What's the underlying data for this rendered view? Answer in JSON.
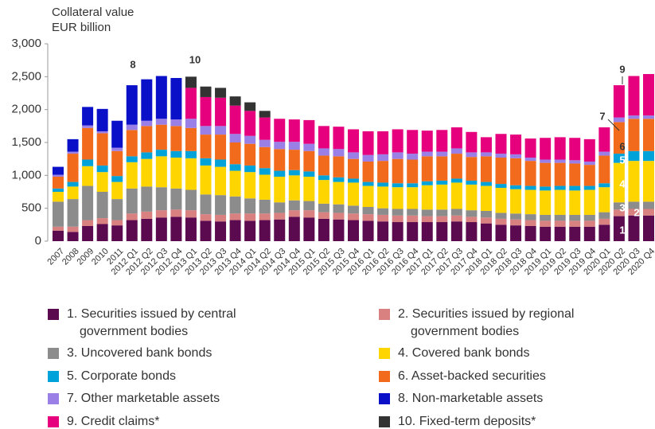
{
  "chart_data": {
    "type": "stacked_bar",
    "title": "Collateral value",
    "subtitle": "EUR billion",
    "categories": [
      "2007",
      "2008",
      "2009",
      "2010",
      "2011",
      "2012 Q1",
      "2012 Q2",
      "2012 Q3",
      "2012 Q4",
      "2013 Q1",
      "2013 Q2",
      "2013 Q3",
      "2013 Q4",
      "2014 Q1",
      "2014 Q2",
      "2014 Q3",
      "2014 Q4",
      "2015 Q1",
      "2015 Q2",
      "2015 Q3",
      "2015 Q4",
      "2016 Q1",
      "2016 Q2",
      "2016 Q3",
      "2016 Q4",
      "2017 Q1",
      "2017 Q2",
      "2017 Q3",
      "2017 Q4",
      "2018 Q1",
      "2018 Q2",
      "2018 Q3",
      "2018 Q4",
      "2019 Q1",
      "2019 Q2",
      "2019 Q3",
      "2019 Q4",
      "2020 Q1",
      "2020 Q2",
      "2020 Q3",
      "2020 Q4"
    ],
    "series": [
      {
        "name": "1. Securities issued by central government bodies",
        "color": "#5c0a4f",
        "values": [
          160,
          140,
          230,
          260,
          240,
          320,
          340,
          360,
          370,
          360,
          310,
          300,
          320,
          310,
          320,
          330,
          370,
          360,
          340,
          330,
          320,
          310,
          300,
          290,
          290,
          290,
          290,
          300,
          290,
          270,
          250,
          240,
          230,
          220,
          220,
          220,
          220,
          250,
          380,
          390,
          390
        ]
      },
      {
        "name": "2. Securities issued by regional government bodies",
        "color": "#d98080",
        "values": [
          60,
          80,
          90,
          90,
          80,
          100,
          110,
          110,
          110,
          110,
          100,
          100,
          100,
          110,
          100,
          100,
          100,
          110,
          100,
          100,
          100,
          100,
          100,
          100,
          100,
          90,
          90,
          90,
          80,
          90,
          90,
          90,
          90,
          90,
          90,
          90,
          90,
          90,
          100,
          100,
          100
        ]
      },
      {
        "name": "3. Uncovered bank bonds",
        "color": "#8c8c8c",
        "values": [
          380,
          420,
          520,
          400,
          320,
          380,
          380,
          350,
          320,
          310,
          300,
          300,
          260,
          230,
          210,
          160,
          150,
          140,
          130,
          130,
          120,
          110,
          100,
          100,
          100,
          100,
          100,
          100,
          100,
          100,
          90,
          90,
          90,
          90,
          90,
          90,
          90,
          100,
          110,
          110,
          110
        ]
      },
      {
        "name": "4. Covered bank bonds",
        "color": "#ffd500",
        "values": [
          150,
          190,
          300,
          300,
          260,
          400,
          420,
          470,
          470,
          480,
          440,
          430,
          390,
          400,
          380,
          390,
          380,
          370,
          360,
          340,
          350,
          320,
          330,
          330,
          330,
          370,
          380,
          400,
          390,
          380,
          380,
          370,
          370,
          370,
          380,
          370,
          380,
          380,
          600,
          620,
          620
        ]
      },
      {
        "name": "5. Corporate bonds",
        "color": "#00a3d9",
        "values": [
          50,
          70,
          100,
          100,
          90,
          90,
          100,
          100,
          100,
          110,
          110,
          110,
          100,
          100,
          100,
          90,
          80,
          80,
          70,
          70,
          60,
          60,
          60,
          60,
          60,
          60,
          60,
          60,
          60,
          60,
          60,
          60,
          60,
          60,
          60,
          70,
          60,
          60,
          140,
          150,
          150
        ]
      },
      {
        "name": "6. Asset-backed securities",
        "color": "#f26b1d",
        "values": [
          180,
          430,
          480,
          490,
          380,
          400,
          400,
          380,
          380,
          350,
          360,
          380,
          330,
          330,
          320,
          330,
          310,
          310,
          300,
          320,
          300,
          310,
          330,
          370,
          360,
          380,
          370,
          380,
          360,
          390,
          400,
          410,
          380,
          360,
          350,
          340,
          320,
          420,
          480,
          490,
          490
        ]
      },
      {
        "name": "7. Other marketable assets",
        "color": "#9a7fe6",
        "values": [
          30,
          30,
          40,
          30,
          50,
          80,
          80,
          90,
          100,
          140,
          130,
          130,
          130,
          120,
          110,
          110,
          120,
          110,
          110,
          110,
          100,
          100,
          100,
          100,
          90,
          70,
          70,
          80,
          70,
          60,
          60,
          60,
          50,
          50,
          50,
          50,
          50,
          60,
          70,
          50,
          50
        ]
      },
      {
        "name": "8. Non-marketable assets",
        "color": "#0a10c8",
        "values": [
          120,
          190,
          280,
          340,
          410,
          600,
          630,
          650,
          630,
          0,
          0,
          0,
          0,
          0,
          0,
          0,
          0,
          0,
          0,
          0,
          0,
          0,
          0,
          0,
          0,
          0,
          0,
          0,
          0,
          0,
          0,
          0,
          0,
          0,
          0,
          0,
          0,
          0,
          0,
          0,
          0
        ]
      },
      {
        "name": "9. Credit claims*",
        "color": "#e6007e",
        "values": [
          0,
          0,
          0,
          0,
          0,
          0,
          0,
          0,
          0,
          470,
          440,
          430,
          430,
          380,
          340,
          350,
          340,
          360,
          340,
          340,
          350,
          360,
          350,
          350,
          360,
          320,
          330,
          320,
          310,
          230,
          300,
          300,
          290,
          330,
          340,
          340,
          340,
          370,
          490,
          600,
          630
        ]
      },
      {
        "name": "10. Fixed-term deposits*",
        "color": "#333333",
        "values": [
          0,
          0,
          0,
          0,
          0,
          0,
          0,
          0,
          0,
          170,
          160,
          150,
          140,
          130,
          100,
          0,
          0,
          0,
          0,
          0,
          0,
          0,
          0,
          0,
          0,
          0,
          0,
          0,
          0,
          0,
          0,
          0,
          0,
          0,
          0,
          0,
          0,
          0,
          0,
          0,
          0
        ]
      }
    ],
    "annotations": [
      "8",
      "10",
      "9",
      "7",
      "1",
      "2",
      "3",
      "4",
      "5",
      "6"
    ],
    "ylim": [
      0,
      3000
    ],
    "yticks": [
      0,
      {
        "value": 500,
        "label": "500"
      },
      {
        "value": 1000,
        "label": "1,000"
      },
      {
        "value": 1500,
        "label": "1,500"
      },
      {
        "value": 2000,
        "label": "2,000"
      },
      {
        "value": 2500,
        "label": "2,500"
      },
      {
        "value": 3000,
        "label": "3,000"
      }
    ],
    "grid": false
  }
}
